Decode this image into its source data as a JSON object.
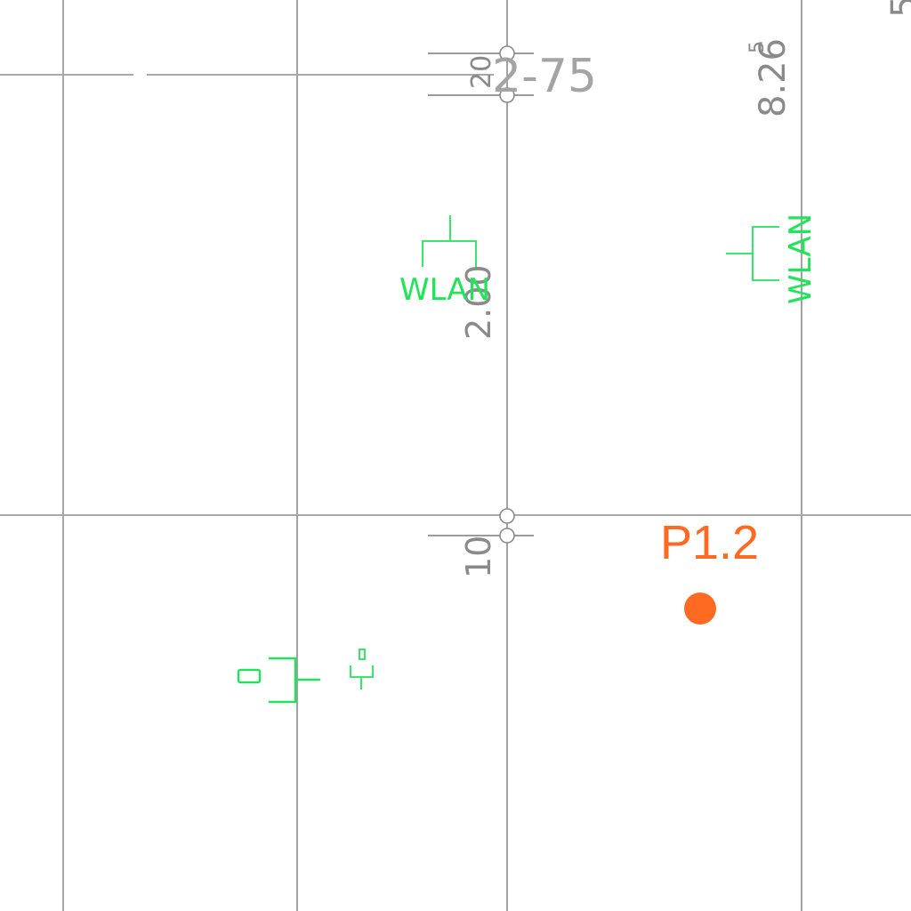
{
  "colors": {
    "grid": "#a8a8a8",
    "dimension": "#8a8a8a",
    "symbol": "#22e35a",
    "point": "#ff6a23",
    "background": "#ffffff"
  },
  "labels": {
    "dim_top_small": "20",
    "dim_top_range": "2-75",
    "dim_right_value": "8.26",
    "dim_right_sup": "5",
    "dim_mid_value": "2.00",
    "dim_lower_value": "10",
    "edge_fragment": "5",
    "wlan_left": "WLAN",
    "wlan_right": "WLAN",
    "point_label": "P1.2"
  },
  "icons": {
    "wlan_left": "wlan-antenna-icon",
    "wlan_right": "wlan-antenna-icon",
    "outlet": "power-outlet-icon",
    "switch": "light-switch-icon",
    "point": "point-marker-icon"
  }
}
